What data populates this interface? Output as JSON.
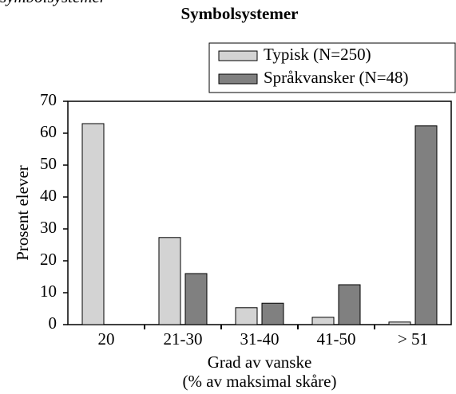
{
  "chart_data": {
    "type": "bar",
    "supertitle": "symbolsystemer",
    "title": "Symbolsystemer",
    "x_label": [
      "Grad av vanske",
      "(% av maksimal skåre)"
    ],
    "y_label": "Prosent elever",
    "categories": [
      "20",
      "21-30",
      "31-40",
      "41-50",
      "> 51"
    ],
    "series": [
      {
        "name": "Typisk (N=250)",
        "color": "#d3d3d3",
        "values": [
          63,
          27.3,
          5.3,
          2.3,
          0.8
        ]
      },
      {
        "name": "Språkvansker (N=48)",
        "color": "#808080",
        "values": [
          0,
          16,
          6.7,
          12.5,
          62.3
        ]
      }
    ],
    "ylim": [
      0,
      70
    ],
    "yticks": [
      0,
      10,
      20,
      30,
      40,
      50,
      60,
      70
    ],
    "legend": "upper right",
    "grid": false
  }
}
